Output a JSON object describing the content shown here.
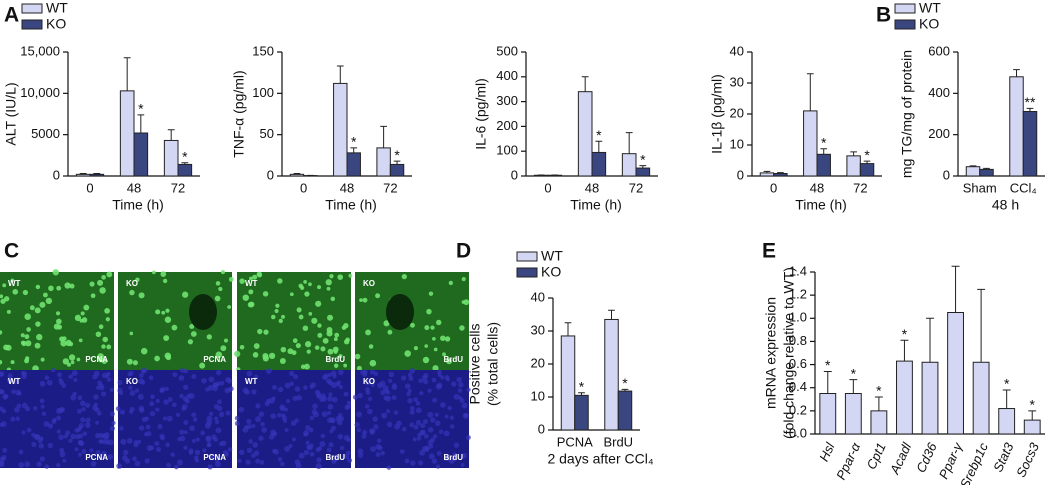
{
  "panel_labels": [
    "A",
    "B",
    "C",
    "D",
    "E"
  ],
  "micrographs": {
    "tiles": [
      {
        "genotype": "WT",
        "stain": "PCNA"
      },
      {
        "genotype": "KO",
        "stain": "PCNA"
      },
      {
        "genotype": "WT",
        "stain": "BrdU"
      },
      {
        "genotype": "KO",
        "stain": "BrdU"
      },
      {
        "genotype": "WT",
        "stain": "PCNA"
      },
      {
        "genotype": "KO",
        "stain": "PCNA"
      },
      {
        "genotype": "WT",
        "stain": "BrdU"
      },
      {
        "genotype": "KO",
        "stain": "BrdU"
      }
    ]
  },
  "chart_data": [
    {
      "type": "bar",
      "ylabel": "ALT (IU/L)",
      "xlabel": "Time (h)",
      "categories": [
        "0",
        "48",
        "72"
      ],
      "legend": true,
      "series": [
        {
          "name": "WT",
          "color": "#d3d7f3",
          "values": [
            200,
            10300,
            4300
          ],
          "errors": [
            100,
            4000,
            1300
          ],
          "significance": [
            null,
            null,
            null
          ]
        },
        {
          "name": "KO",
          "color": "#3a4680",
          "values": [
            200,
            5200,
            1400
          ],
          "errors": [
            100,
            2200,
            200
          ],
          "significance": [
            null,
            "*",
            "*"
          ]
        }
      ],
      "ylim": [
        0,
        15000
      ],
      "yticks": [
        0,
        5000,
        {
          "value": 10000,
          "label": "10,000"
        },
        {
          "value": 15000,
          "label": "15,000"
        }
      ]
    },
    {
      "type": "bar",
      "ylabel": "TNF-α (pg/ml)",
      "xlabel": "Time (h)",
      "categories": [
        "0",
        "48",
        "72"
      ],
      "series": [
        {
          "color": "#d3d7f3",
          "values": [
            2,
            112,
            34
          ],
          "errors": [
            1,
            21,
            26
          ],
          "significance": [
            null,
            null,
            null
          ]
        },
        {
          "color": "#3a4680",
          "values": [
            0.5,
            28,
            14
          ],
          "errors": [
            0.3,
            6,
            4
          ],
          "significance": [
            null,
            "*",
            "*"
          ]
        }
      ],
      "ylim": [
        0,
        150
      ],
      "yticks": [
        0,
        50,
        100,
        150
      ]
    },
    {
      "type": "bar",
      "ylabel": "IL-6 (pg/ml)",
      "xlabel": "Time (h)",
      "categories": [
        "0",
        "48",
        "72"
      ],
      "series": [
        {
          "color": "#d3d7f3",
          "values": [
            3,
            340,
            90
          ],
          "errors": [
            1,
            60,
            85
          ],
          "significance": [
            null,
            null,
            null
          ]
        },
        {
          "color": "#3a4680",
          "values": [
            3,
            95,
            32
          ],
          "errors": [
            1,
            45,
            10
          ],
          "significance": [
            null,
            "*",
            "*"
          ]
        }
      ],
      "ylim": [
        0,
        500
      ],
      "yticks": [
        0,
        100,
        200,
        300,
        400,
        500
      ]
    },
    {
      "type": "bar",
      "ylabel": "IL-1β (pg/ml)",
      "xlabel": "Time (h)",
      "categories": [
        "0",
        "48",
        "72"
      ],
      "series": [
        {
          "color": "#d3d7f3",
          "values": [
            1,
            21,
            6.5
          ],
          "errors": [
            0.5,
            12,
            1.3
          ],
          "significance": [
            null,
            null,
            null
          ]
        },
        {
          "color": "#3a4680",
          "values": [
            0.8,
            7,
            4
          ],
          "errors": [
            0.3,
            1.8,
            0.8
          ],
          "significance": [
            null,
            "*",
            "*"
          ]
        }
      ],
      "ylim": [
        0,
        40
      ],
      "yticks": [
        0,
        10,
        20,
        30,
        40
      ]
    },
    {
      "type": "bar",
      "ylabel": "mg TG/mg of protein",
      "xlabel": "48 h",
      "categories": [
        "Sham",
        "CCl₄"
      ],
      "legend": true,
      "series": [
        {
          "name": "WT",
          "color": "#d3d7f3",
          "values": [
            45,
            480
          ],
          "errors": [
            4,
            35
          ],
          "significance": [
            null,
            null
          ]
        },
        {
          "name": "KO",
          "color": "#3a4680",
          "values": [
            32,
            312
          ],
          "errors": [
            5,
            15
          ],
          "significance": [
            null,
            "**"
          ]
        }
      ],
      "ylim": [
        0,
        600
      ],
      "yticks": [
        0,
        200,
        400,
        600
      ]
    },
    {
      "type": "bar",
      "ylabel": [
        "Positive cells",
        "(% total cells)"
      ],
      "xlabel": "2 days after CCl₄",
      "categories": [
        "PCNA",
        "BrdU"
      ],
      "legend": true,
      "series": [
        {
          "name": "WT",
          "color": "#d3d7f3",
          "values": [
            28.5,
            33.5
          ],
          "errors": [
            4,
            2.8
          ],
          "significance": [
            null,
            null
          ]
        },
        {
          "name": "KO",
          "color": "#3a4680",
          "values": [
            10.5,
            11.8
          ],
          "errors": [
            0.8,
            0.5
          ],
          "significance": [
            "*",
            "*"
          ]
        }
      ],
      "ylim": [
        0,
        40
      ],
      "yticks": [
        0,
        10,
        20,
        30,
        40
      ]
    },
    {
      "type": "bar",
      "ylabel": [
        "mRNA expression",
        "(fold change relative to WT)"
      ],
      "categories": [
        "Hsl",
        "Ppar-α",
        "Cpt1",
        "Acadl",
        "Cd36",
        "Ppar-γ",
        "Srebp1c",
        "Stat3",
        "Socs3"
      ],
      "italic_categories": true,
      "series": [
        {
          "color": "#d3d7f3",
          "values": [
            0.35,
            0.35,
            0.2,
            0.63,
            0.62,
            1.05,
            0.62,
            0.22,
            0.12
          ],
          "errors": [
            0.19,
            0.12,
            0.12,
            0.18,
            0.38,
            0.4,
            0.63,
            0.16,
            0.08
          ],
          "significance": [
            "*",
            "*",
            "*",
            "*",
            null,
            null,
            null,
            "*",
            "*"
          ]
        }
      ],
      "ylim": [
        0,
        1.4
      ],
      "yticks": [
        {
          "value": 0,
          "label": "0.0"
        },
        0.2,
        0.4,
        0.6,
        0.8,
        {
          "value": 1,
          "label": "1.0"
        },
        1.2,
        1.4
      ]
    }
  ]
}
